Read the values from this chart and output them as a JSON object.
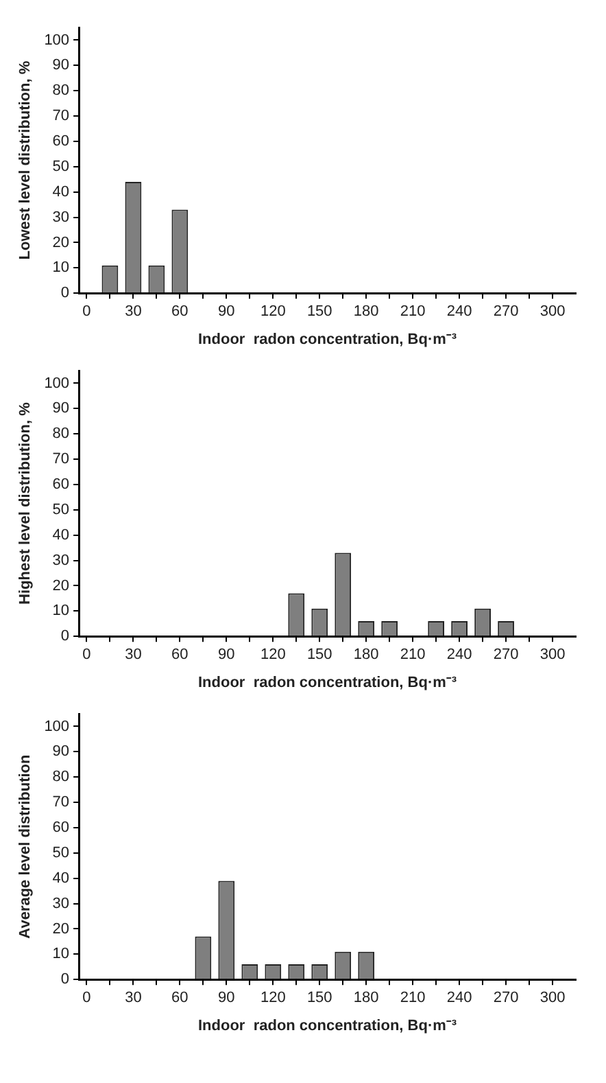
{
  "chart_data": [
    {
      "type": "bar",
      "x": [
        15,
        30,
        45,
        60
      ],
      "values": [
        11,
        44,
        11,
        33
      ],
      "color": "#7f7f7f",
      "xlabel": "Indoor  radon concentration, Bq·m⁻³",
      "ylabel": "Lowest level distribution, %",
      "xlim": [
        -5,
        315
      ],
      "ylim": [
        0,
        105
      ],
      "xticks": [
        0,
        {
          "value": 15,
          "label": null
        },
        30,
        {
          "value": 45,
          "label": null
        },
        60,
        {
          "value": 75,
          "label": null
        },
        90,
        {
          "value": 105,
          "label": null
        },
        120,
        {
          "value": 135,
          "label": null
        },
        150,
        {
          "value": 165,
          "label": null
        },
        180,
        {
          "value": 195,
          "label": null
        },
        210,
        {
          "value": 225,
          "label": null
        },
        240,
        {
          "value": 255,
          "label": null
        },
        270,
        {
          "value": 285,
          "label": null
        },
        300
      ],
      "yticks": [
        0,
        10,
        20,
        30,
        40,
        50,
        60,
        70,
        80,
        90,
        100
      ],
      "grid": false,
      "legend": false
    },
    {
      "type": "bar",
      "x": [
        135,
        150,
        165,
        180,
        195,
        225,
        240,
        255,
        270
      ],
      "values": [
        17,
        11,
        33,
        6,
        6,
        6,
        6,
        11,
        6
      ],
      "color": "#7f7f7f",
      "xlabel": "Indoor  radon concentration, Bq·m⁻³",
      "ylabel": "Highest level distribution, %",
      "xlim": [
        -5,
        315
      ],
      "ylim": [
        0,
        105
      ],
      "xticks": [
        0,
        {
          "value": 15,
          "label": null
        },
        30,
        {
          "value": 45,
          "label": null
        },
        60,
        {
          "value": 75,
          "label": null
        },
        90,
        {
          "value": 105,
          "label": null
        },
        120,
        {
          "value": 135,
          "label": null
        },
        150,
        {
          "value": 165,
          "label": null
        },
        180,
        {
          "value": 195,
          "label": null
        },
        210,
        {
          "value": 225,
          "label": null
        },
        240,
        {
          "value": 255,
          "label": null
        },
        270,
        {
          "value": 285,
          "label": null
        },
        300
      ],
      "yticks": [
        0,
        10,
        20,
        30,
        40,
        50,
        60,
        70,
        80,
        90,
        100
      ],
      "grid": false,
      "legend": false
    },
    {
      "type": "bar",
      "x": [
        75,
        90,
        105,
        120,
        135,
        150,
        165,
        180
      ],
      "values": [
        17,
        39,
        6,
        6,
        6,
        6,
        11,
        11
      ],
      "color": "#7f7f7f",
      "xlabel": "Indoor  radon concentration, Bq·m⁻³",
      "ylabel": "Average level distribution",
      "xlim": [
        -5,
        315
      ],
      "ylim": [
        0,
        105
      ],
      "xticks": [
        0,
        {
          "value": 15,
          "label": null
        },
        30,
        {
          "value": 45,
          "label": null
        },
        60,
        {
          "value": 75,
          "label": null
        },
        90,
        {
          "value": 105,
          "label": null
        },
        120,
        {
          "value": 135,
          "label": null
        },
        150,
        {
          "value": 165,
          "label": null
        },
        180,
        {
          "value": 195,
          "label": null
        },
        210,
        {
          "value": 225,
          "label": null
        },
        240,
        {
          "value": 255,
          "label": null
        },
        270,
        {
          "value": 285,
          "label": null
        },
        300
      ],
      "yticks": [
        0,
        10,
        20,
        30,
        40,
        50,
        60,
        70,
        80,
        90,
        100
      ],
      "grid": false,
      "legend": false
    }
  ]
}
